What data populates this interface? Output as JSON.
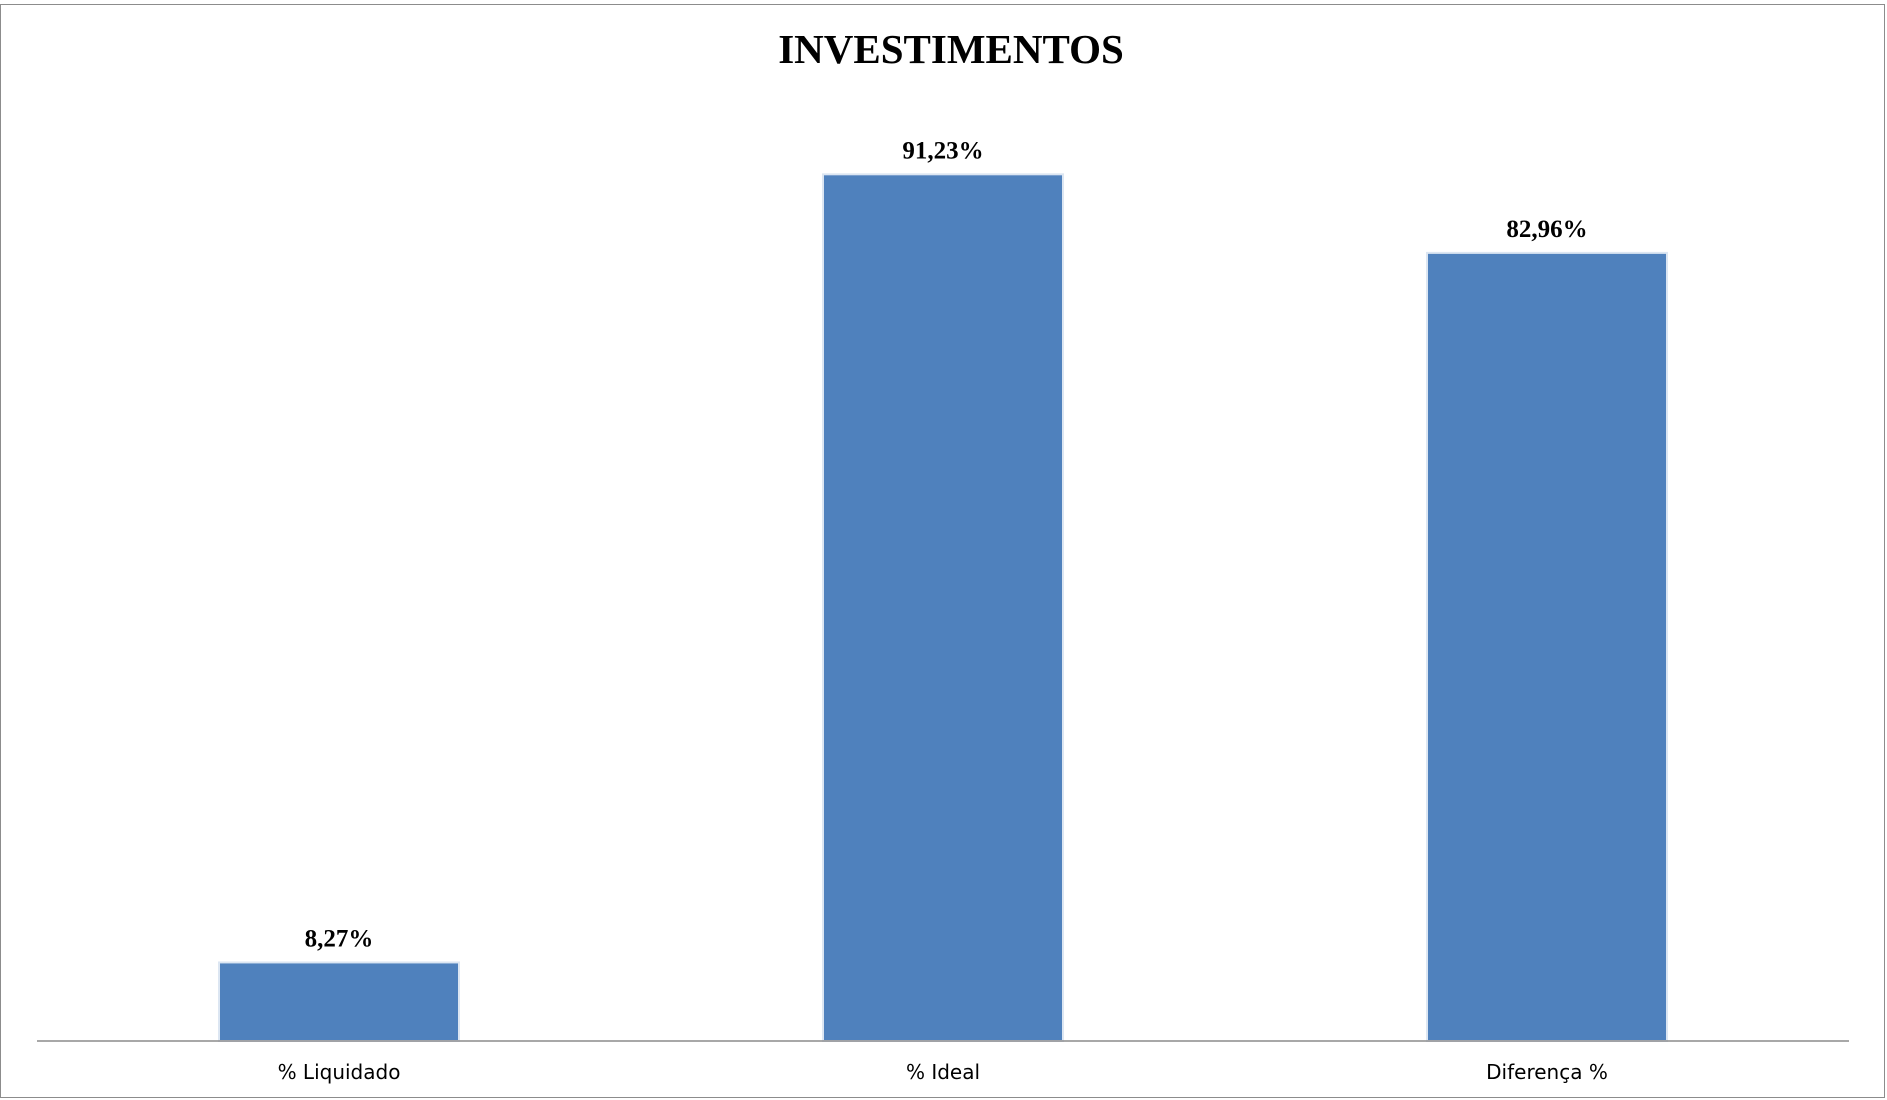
{
  "chart_data": {
    "type": "bar",
    "title": "INVESTIMENTOS",
    "xlabel": "",
    "ylabel": "",
    "categories": [
      "% Liquidado",
      "% Ideal",
      "Diferença %"
    ],
    "values": [
      8.27,
      91.23,
      82.96
    ],
    "data_labels": [
      "8,27%",
      "91,23%",
      "82,96%"
    ],
    "ylim": [
      0,
      100
    ],
    "grid": false,
    "legend": "none",
    "bar_color": "#4f81bd",
    "bar_edge_color": "#dce6f2",
    "axis_color": "#8c8c8c"
  }
}
